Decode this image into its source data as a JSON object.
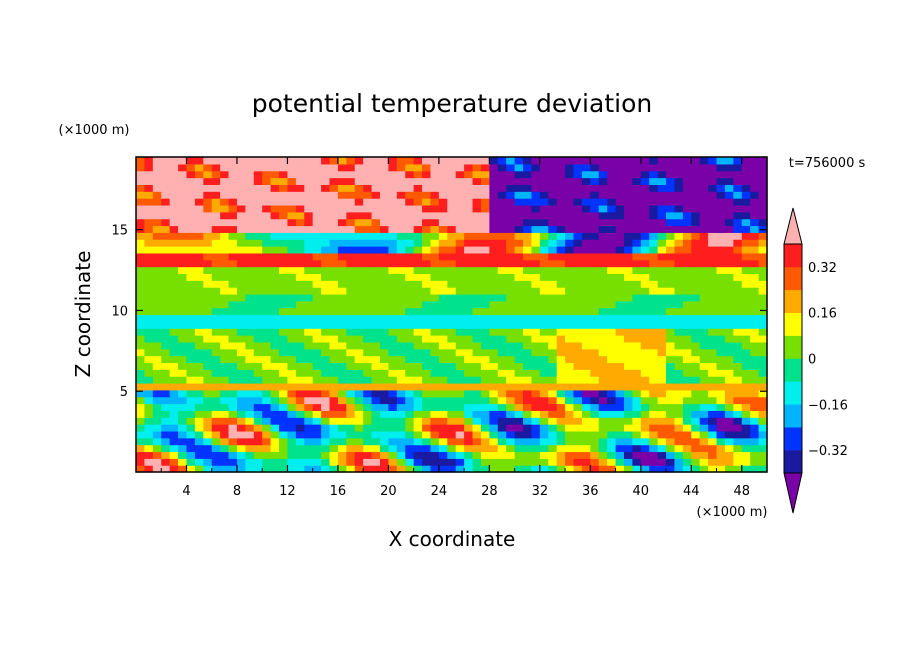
{
  "chart_data": {
    "type": "heatmap",
    "title": "potential temperature deviation",
    "xlabel": "X coordinate",
    "ylabel": "Z coordinate",
    "x_unit": "(×1000 m)",
    "y_unit": "(×1000 m)",
    "time_label": "t=756000 s",
    "xlim": [
      0,
      50
    ],
    "ylim": [
      0,
      19.5
    ],
    "x_ticks": [
      4,
      8,
      12,
      16,
      20,
      24,
      28,
      32,
      36,
      40,
      44,
      48
    ],
    "y_ticks": [
      5,
      10,
      15
    ],
    "colorbar": {
      "levels": [
        -0.4,
        -0.32,
        -0.24,
        -0.16,
        -0.08,
        0,
        0.08,
        0.16,
        0.24,
        0.32,
        0.4
      ],
      "tick_labels": [
        "0.32",
        "0.16",
        "0",
        "−0.16",
        "−0.32"
      ],
      "tick_values": [
        0.32,
        0.16,
        0,
        -0.16,
        -0.32
      ],
      "colors": [
        "#7a00a8",
        "#1a1aa0",
        "#0033ff",
        "#00b4ff",
        "#00eeee",
        "#00e38c",
        "#77e000",
        "#ffff00",
        "#ffaa00",
        "#ff5a00",
        "#ff1e1e",
        "#ffb0b0"
      ],
      "extend": "both"
    },
    "bands": [
      {
        "z": [
          12.6,
          13.4
        ],
        "value": 0.35
      },
      {
        "z": [
          11.2,
          12.6
        ],
        "value": 0.05
      },
      {
        "z": [
          9.0,
          9.8
        ],
        "value": -0.12
      },
      {
        "z": [
          5.0,
          5.3
        ],
        "value": 0.2
      }
    ]
  }
}
